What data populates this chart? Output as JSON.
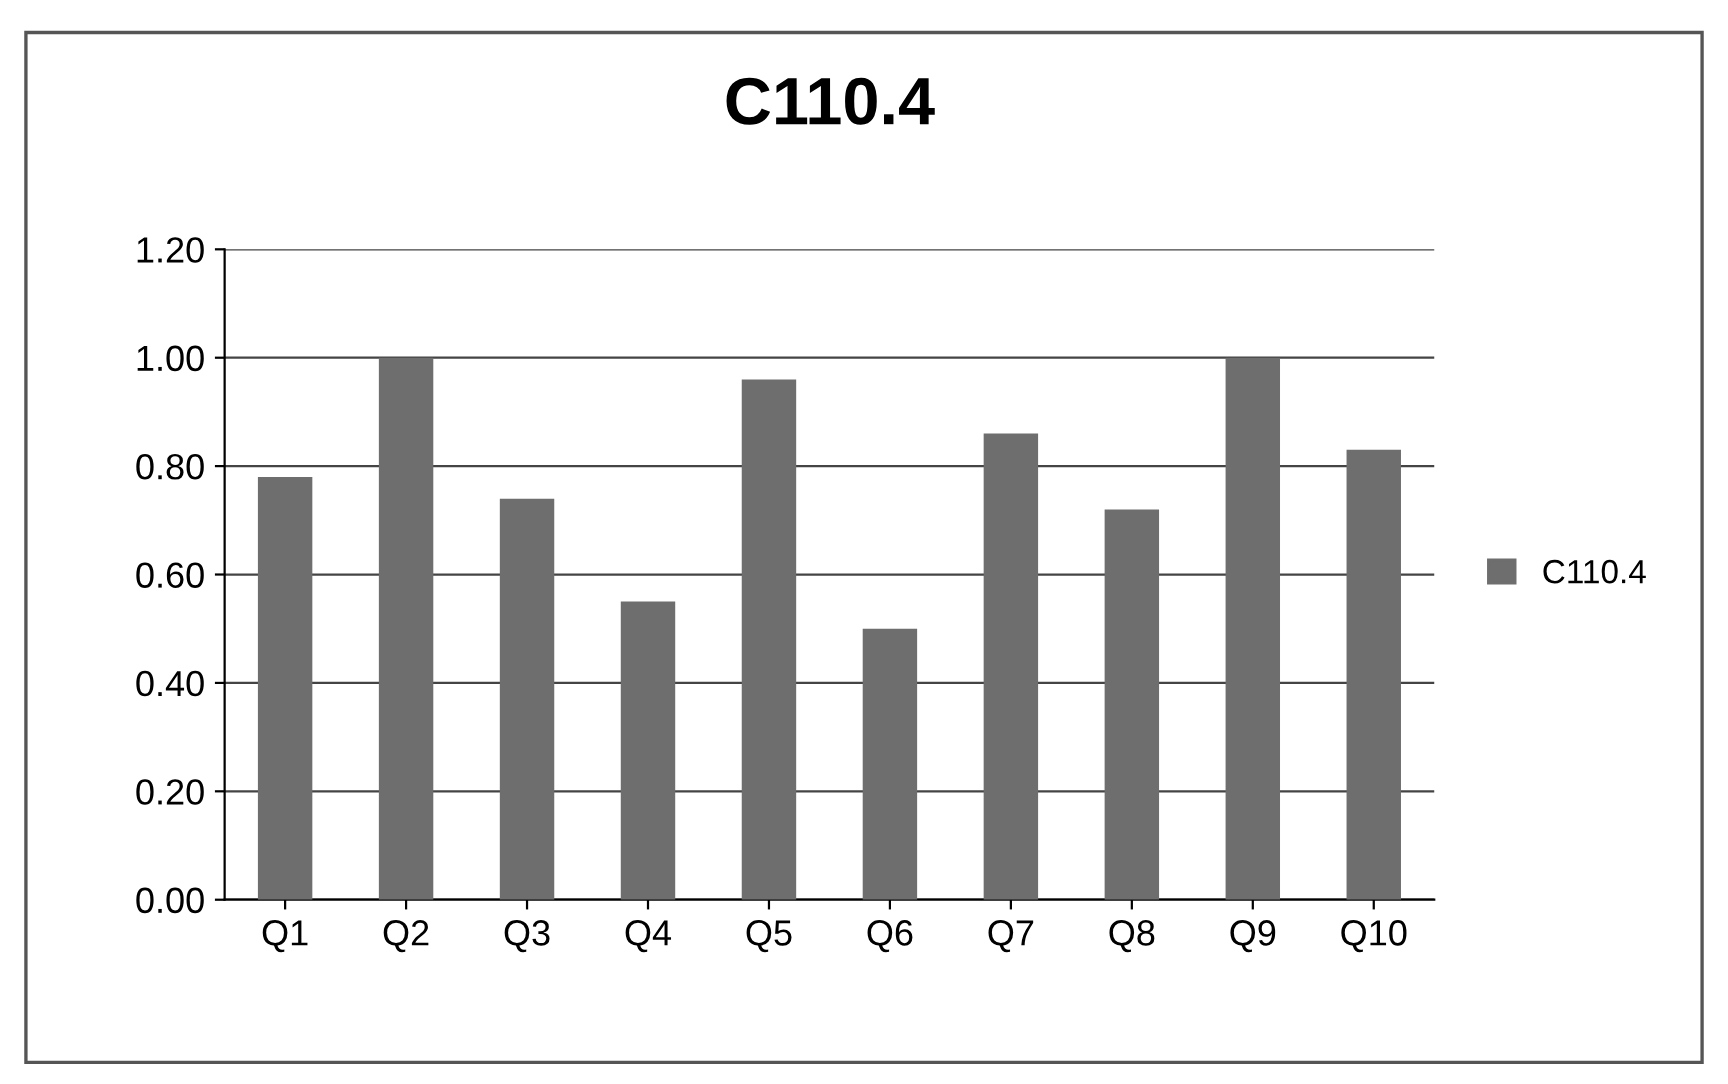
{
  "chart_data": {
    "type": "bar",
    "title": "C110.4",
    "categories": [
      "Q1",
      "Q2",
      "Q3",
      "Q4",
      "Q5",
      "Q6",
      "Q7",
      "Q8",
      "Q9",
      "Q10"
    ],
    "series": [
      {
        "name": "C110.4",
        "color": "#6e6e6e",
        "values": [
          0.78,
          1.0,
          0.74,
          0.55,
          0.96,
          0.5,
          0.86,
          0.72,
          1.0,
          0.83
        ]
      }
    ],
    "ylim": [
      0,
      1.2
    ],
    "yticks": [
      {
        "value": 0,
        "label": "0.00"
      },
      {
        "value": 0.2,
        "label": "0.20"
      },
      {
        "value": 0.4,
        "label": "0.40"
      },
      {
        "value": 0.6,
        "label": "0.60"
      },
      {
        "value": 0.8,
        "label": "0.80"
      },
      {
        "value": 1.0,
        "label": "1.00"
      },
      {
        "value": 1.2,
        "label": "1.20"
      }
    ],
    "grid": "y",
    "legend": "right"
  }
}
